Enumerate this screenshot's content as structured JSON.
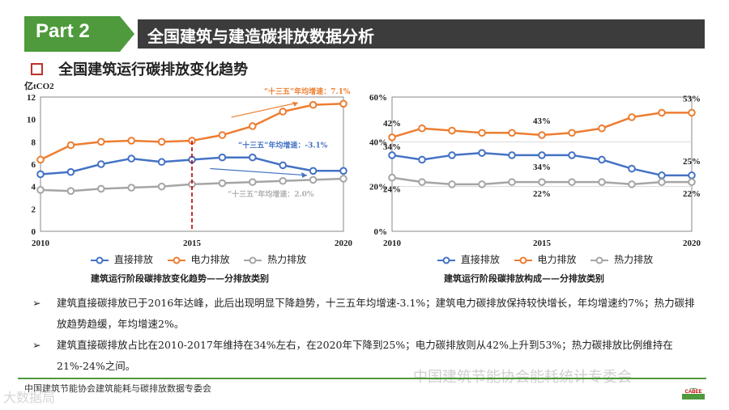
{
  "header": {
    "part": "Part 2",
    "title": "全国建筑与建造碳排放数据分析"
  },
  "section_title": "全国建筑运行碳排放变化趋势",
  "colors": {
    "direct": "#4472c4",
    "electric": "#ed7d31",
    "heat": "#a5a5a5",
    "green": "#4e9a3c",
    "marker": "#c00000"
  },
  "chart_data": [
    {
      "type": "line",
      "title": "",
      "ylabel": "亿tCO2",
      "x": [
        2010,
        2011,
        2012,
        2013,
        2014,
        2015,
        2016,
        2017,
        2018,
        2019,
        2020
      ],
      "xticks": [
        "2010",
        "2015",
        "2020"
      ],
      "ylim": [
        0,
        12
      ],
      "yticks": [
        "0",
        "2",
        "4",
        "6",
        "8",
        "10",
        "12"
      ],
      "series": [
        {
          "name": "直接排放",
          "values": [
            5.1,
            5.3,
            6.0,
            6.5,
            6.2,
            6.4,
            6.6,
            6.6,
            5.9,
            5.4,
            5.4
          ]
        },
        {
          "name": "电力排放",
          "values": [
            6.4,
            7.7,
            8.0,
            8.1,
            8.0,
            8.1,
            8.6,
            9.4,
            10.7,
            11.3,
            11.4
          ]
        },
        {
          "name": "热力排放",
          "values": [
            3.7,
            3.6,
            3.8,
            3.9,
            4.0,
            4.2,
            4.3,
            4.4,
            4.5,
            4.6,
            4.7
          ]
        }
      ],
      "annotations": [
        {
          "text": "“十三五”年均增速：7.1%",
          "series": "电力排放"
        },
        {
          "text": "“十三五”年均增速：-3.1%",
          "series": "直接排放"
        },
        {
          "text": "“十三五”年均增速：2.0%",
          "series": "热力排放"
        }
      ],
      "vline_x": 2015,
      "caption": "建筑运行阶段碳排放变化趋势——分排放类别"
    },
    {
      "type": "line",
      "title": "",
      "x": [
        2010,
        2011,
        2012,
        2013,
        2014,
        2015,
        2016,
        2017,
        2018,
        2019,
        2020
      ],
      "xticks": [
        "2010",
        "2015",
        "2020"
      ],
      "ylim": [
        0,
        60
      ],
      "yticks": [
        "0%",
        "20%",
        "40%",
        "60%"
      ],
      "series": [
        {
          "name": "直接排放",
          "values": [
            34,
            32,
            34,
            35,
            34,
            34,
            34,
            32,
            28,
            25,
            25
          ]
        },
        {
          "name": "电力排放",
          "values": [
            42,
            46,
            45,
            44,
            44,
            43,
            44,
            46,
            51,
            53,
            53
          ]
        },
        {
          "name": "热力排放",
          "values": [
            24,
            22,
            21,
            21,
            22,
            22,
            22,
            22,
            21,
            22,
            22
          ]
        }
      ],
      "data_labels": [
        {
          "text": "42%",
          "series": "电力排放",
          "x": 2010
        },
        {
          "text": "34%",
          "series": "直接排放",
          "x": 2010
        },
        {
          "text": "24%",
          "series": "热力排放",
          "x": 2010
        },
        {
          "text": "43%",
          "series": "电力排放",
          "x": 2015
        },
        {
          "text": "34%",
          "series": "直接排放",
          "x": 2015
        },
        {
          "text": "22%",
          "series": "热力排放",
          "x": 2015
        },
        {
          "text": "53%",
          "series": "电力排放",
          "x": 2020
        },
        {
          "text": "25%",
          "series": "直接排放",
          "x": 2020
        },
        {
          "text": "22%",
          "series": "热力排放",
          "x": 2020
        }
      ],
      "caption": "建筑运行阶段碳排放构成——分排放类别"
    }
  ],
  "legend": [
    "直接排放",
    "电力排放",
    "热力排放"
  ],
  "bullets": [
    "建筑直接碳排放已于2016年达峰，此后出现明显下降趋势，十三五年均增速-3.1%；建筑电力碳排放保持较快增长，年均增速约7%；热力碳排放趋势趋缓，年均增速2%。",
    "建筑直接碳排放占比在2010-2017年维持在34%左右，在2020年下降到25%；电力碳排放则从42%上升到53%；热力碳排放比例维持在21%-24%之间。"
  ],
  "bullet_marker": "➢",
  "footer": "中国建筑节能协会建筑能耗与碳排放数据专委会",
  "watermark": "中国建筑节能协会能耗统计专委会",
  "watermark2": "大数据局",
  "logo_text": "CABEE"
}
